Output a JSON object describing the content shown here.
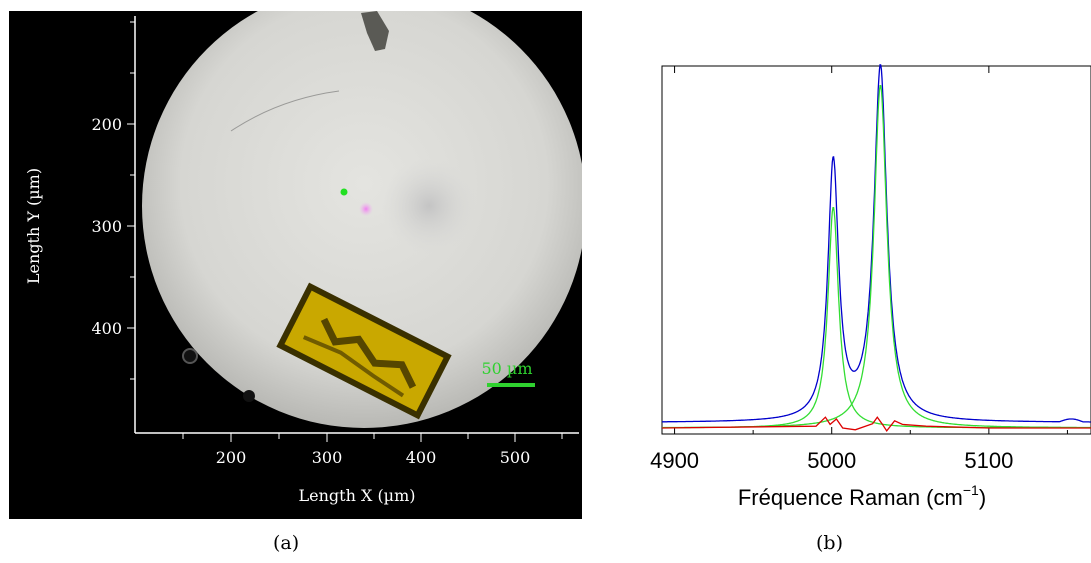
{
  "panel_a": {
    "caption": "(a)",
    "xlabel": "Length X (µm)",
    "ylabel": "Length Y (µm)",
    "x_ticks": [
      "200",
      "300",
      "400",
      "500"
    ],
    "y_ticks": [
      "200",
      "300",
      "400"
    ],
    "scale_bar_label": "50 µm",
    "colors": {
      "background": "#000000",
      "field": "#dcdcd8",
      "crystal": "#c9a800",
      "laser_spot": "#22e022",
      "scale_bar": "#2fd12f"
    }
  },
  "panel_b": {
    "caption": "(b)",
    "xlabel_main": "Fréquence Raman (cm",
    "xlabel_sup": "−1",
    "xlabel_end": ")"
  },
  "chart_data": [
    {
      "type": "line",
      "panel": "b",
      "xlim": [
        4892,
        5165
      ],
      "ylim": [
        0,
        1
      ],
      "x_ticks": [
        4900,
        5000,
        5100
      ],
      "y_ticks_shown": false,
      "grid": false,
      "series": [
        {
          "role": "measured",
          "color": "#0000cc",
          "baseline": 0.015,
          "peaks": [
            {
              "center": 5001,
              "height": 0.715,
              "hwhm": 4.1
            },
            {
              "center": 5031,
              "height": 0.985,
              "hwhm": 5.0
            }
          ]
        },
        {
          "role": "fit-peak-1",
          "color": "#33dd33",
          "baseline": 0.0,
          "peaks": [
            {
              "center": 5001,
              "height": 0.615,
              "hwhm": 4.1
            }
          ]
        },
        {
          "role": "fit-peak-2",
          "color": "#33dd33",
          "baseline": 0.0,
          "peaks": [
            {
              "center": 5031,
              "height": 0.955,
              "hwhm": 5.0
            }
          ]
        },
        {
          "role": "residual",
          "color": "#dd0000",
          "points": [
            [
              4892,
              0.0
            ],
            [
              4990,
              0.005
            ],
            [
              4996,
              0.03
            ],
            [
              4999,
              0.01
            ],
            [
              5003,
              0.025
            ],
            [
              5007,
              0.0
            ],
            [
              5015,
              -0.005
            ],
            [
              5026,
              0.012
            ],
            [
              5029,
              0.03
            ],
            [
              5032,
              0.012
            ],
            [
              5035,
              -0.008
            ],
            [
              5040,
              0.02
            ],
            [
              5045,
              0.01
            ],
            [
              5060,
              0.005
            ],
            [
              5100,
              0.0
            ],
            [
              5165,
              0.0
            ]
          ]
        }
      ]
    }
  ]
}
